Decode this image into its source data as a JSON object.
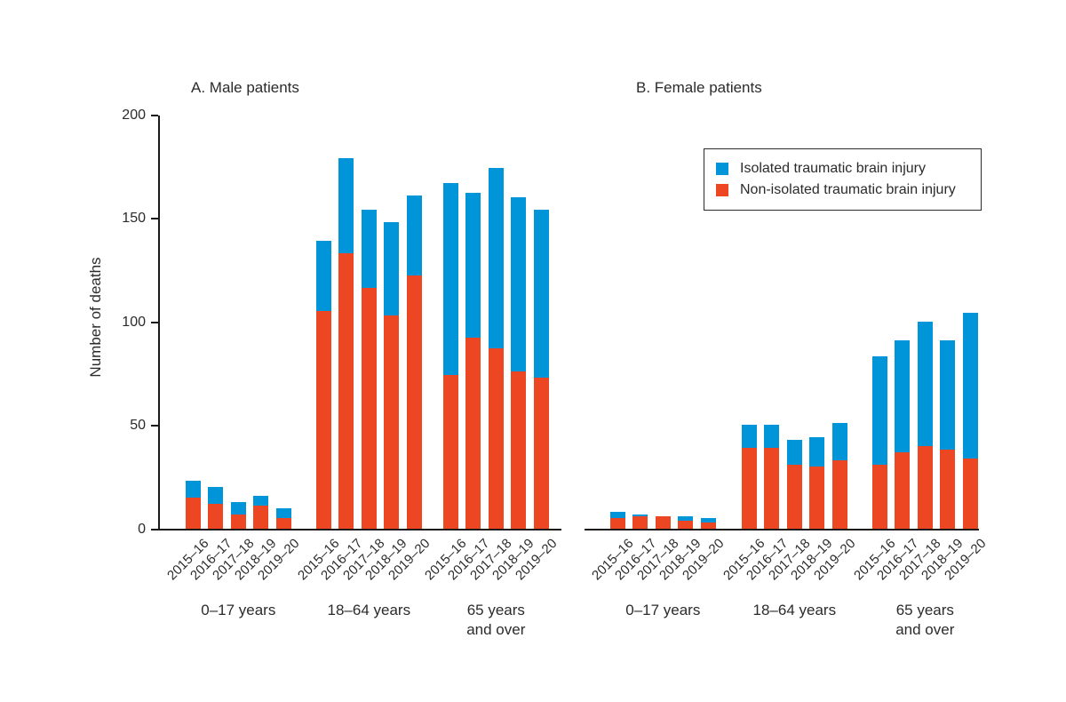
{
  "chart_data": {
    "type": "bar",
    "stacked": true,
    "y_axis": {
      "label": "Number of deaths",
      "ticks": [
        0,
        50,
        100,
        150,
        200
      ],
      "max": 200
    },
    "years": [
      "2015–16",
      "2016–17",
      "2017–18",
      "2018–19",
      "2019–20"
    ],
    "age_groups": [
      "0–17 years",
      "18–64 years",
      "65 years\nand over"
    ],
    "colors": {
      "isolated": "#0095d8",
      "non_isolated": "#ec4623"
    },
    "panels": [
      {
        "title": "A. Male patients",
        "non_isolated": [
          [
            15,
            12,
            7,
            11,
            5
          ],
          [
            105,
            133,
            116,
            103,
            122
          ],
          [
            74,
            92,
            87,
            76,
            73
          ]
        ],
        "isolated": [
          [
            8,
            8,
            6,
            5,
            5
          ],
          [
            34,
            46,
            38,
            45,
            39
          ],
          [
            93,
            70,
            87,
            84,
            81
          ]
        ]
      },
      {
        "title": "B. Female patients",
        "non_isolated": [
          [
            5,
            6,
            6,
            4,
            3
          ],
          [
            39,
            39,
            31,
            30,
            33
          ],
          [
            31,
            37,
            40,
            38,
            34
          ]
        ],
        "isolated": [
          [
            3,
            1,
            0,
            2,
            2
          ],
          [
            11,
            11,
            12,
            14,
            18
          ],
          [
            52,
            54,
            60,
            53,
            70
          ]
        ]
      }
    ]
  },
  "legend": {
    "items": [
      {
        "label": "Isolated traumatic brain injury",
        "color": "#0095d8"
      },
      {
        "label": "Non-isolated traumatic brain injury",
        "color": "#ec4623"
      }
    ]
  }
}
